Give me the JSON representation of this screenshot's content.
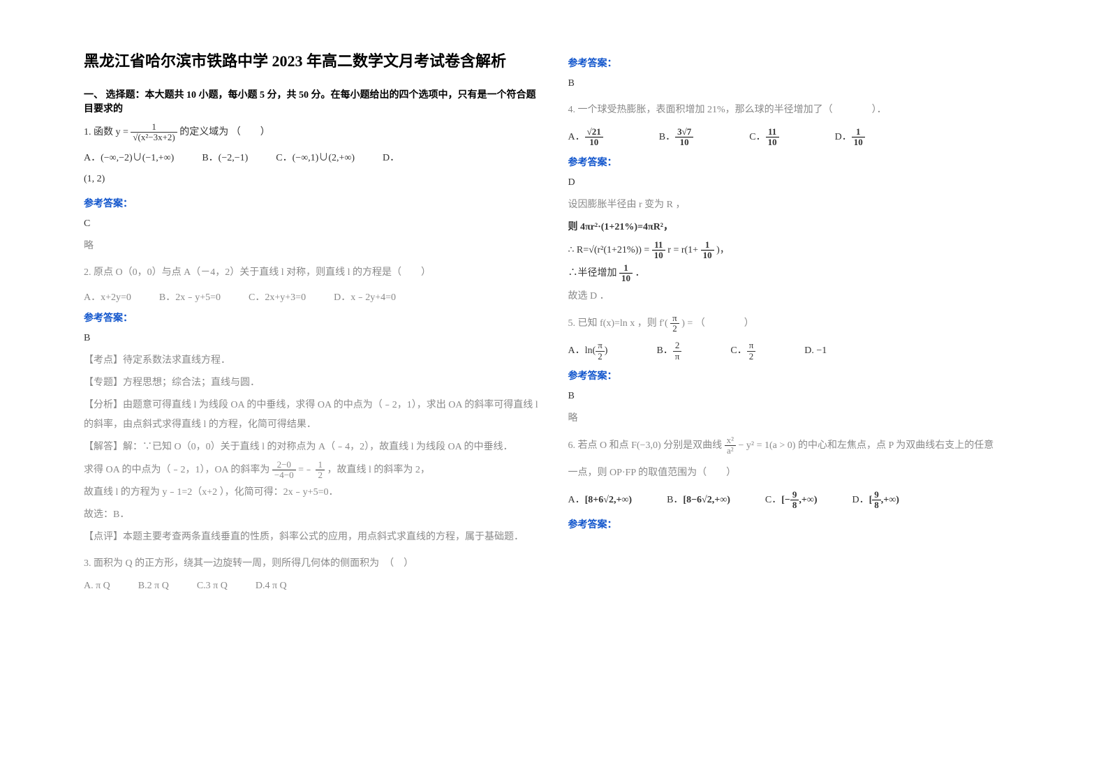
{
  "title": "黑龙江省哈尔滨市铁路中学 2023 年高二数学文月考试卷含解析",
  "section1_header": "一、 选择题：本大题共 10 小题，每小题 5 分，共 50 分。在每小题给出的四个选项中，只有是一个符合题目要求的",
  "q1": {
    "stem_prefix": "1. 函数 ",
    "stem_suffix": " 的定义域为  （　　）",
    "formula_num": "1",
    "formula_den": "√(x²−3x+2)",
    "optA": "(−∞,−2)∪(−1,+∞)",
    "optB": "(−2,−1)",
    "optC": "(−∞,1)∪(2,+∞)",
    "optD": "(1, 2)",
    "answer_label": "参考答案：",
    "answer": "C",
    "note": "略"
  },
  "q2": {
    "stem": "2. 原点 O（0，0）与点 A（－4，2）关于直线 l 对称，则直线 l 的方程是（　　）",
    "optA": "A．x+2y=0",
    "optB": "B．2x﹣y+5=0",
    "optC": "C．2x+y+3=0",
    "optD": "D．x﹣2y+4=0",
    "answer_label": "参考答案：",
    "answer": "B",
    "kaodian_label": "【考点】",
    "kaodian": "待定系数法求直线方程．",
    "zhuanti_label": "【专题】",
    "zhuanti": "方程思想；综合法；直线与圆．",
    "fenxi_label": "【分析】",
    "fenxi": "由题意可得直线 l 为线段 OA 的中垂线，求得 OA 的中点为（﹣2，1），求出 OA 的斜率可得直线 l 的斜率，由点斜式求得直线 l 的方程，化简可得结果．",
    "jieda_label": "【解答】",
    "jieda1": "解：∵已知 O（0，0）关于直线 l 的对称点为 A（﹣4，2），故直线 l 为线段 OA 的中垂线．",
    "jieda2_p1": "求得 OA 的中点为（﹣2，1），OA 的斜率为 ",
    "jieda2_frac_num": "2−0",
    "jieda2_frac_den": "−4−0",
    "jieda2_p2": "=﹣",
    "jieda2_frac2_num": "1",
    "jieda2_frac2_den": "2",
    "jieda2_p3": "，故直线 l 的斜率为 2，",
    "jieda3": "故直线 l 的方程为 y﹣1=2（x+2 ），化简可得：2x﹣y+5=0．",
    "jieda4": "故选：B．",
    "dianping_label": "【点评】",
    "dianping": "本题主要考查两条直线垂直的性质，斜率公式的应用，用点斜式求直线的方程，属于基础题．"
  },
  "q3": {
    "stem": "3. 面积为 Q 的正方形，绕其一边旋转一周，则所得几何体的侧面积为　（　）",
    "optA": "A. π Q",
    "optB": "B.2 π Q",
    "optC": "C.3 π Q",
    "optD": "D.4 π Q",
    "answer_label": "参考答案：",
    "answer": "B"
  },
  "q4": {
    "stem": "4. 一个球受热膨胀，表面积增加 21%，那么球的半径增加了（　　　　）．",
    "optA_num": "√21",
    "optA_den": "10",
    "optB_num": "3√7",
    "optB_den": "10",
    "optC_num": "11",
    "optC_den": "10",
    "optD_num": "1",
    "optD_den": "10",
    "answer_label": "参考答案：",
    "answer": "D",
    "line1": "设因膨胀半径由 r 变为 R ，",
    "line2": "则 4πr²·(1+21%)=4πR²，",
    "line3_p1": "∴ R=√(r²(1+21%)) = ",
    "line3_frac_num": "11",
    "line3_frac_den": "10",
    "line3_p2": " r = r(1+",
    "line3_frac2_num": "1",
    "line3_frac2_den": "10",
    "line3_p3": ")，",
    "line4_p1": "∴半径增加 ",
    "line4_frac_num": "1",
    "line4_frac_den": "10",
    "line4_p2": " ．",
    "line5": "故选 D ．"
  },
  "q5": {
    "stem_p1": "5. 已知 f(x)=ln x ，则 f′(",
    "stem_frac_num": "π",
    "stem_frac_den": "2",
    "stem_p2": ") = （　　　　）",
    "optA_p1": "ln(",
    "optA_num": "π",
    "optA_den": "2",
    "optA_p2": ")",
    "optB_num": "2",
    "optB_den": "π",
    "optC_num": "π",
    "optC_den": "2",
    "optD": "D. −1",
    "answer_label": "参考答案：",
    "answer": "B",
    "note": "略"
  },
  "q6": {
    "stem_p1": "6. 若点 O 和点 F(−3,0) 分别是双曲线 ",
    "stem_frac_num": "x²",
    "stem_frac_den": "a²",
    "stem_p2": " − y² = 1(a > 0) 的中心和左焦点，点 P 为双曲线右支上的任意",
    "stem_p3": "一点，则 OP·FP 的取值范围为（　　）",
    "optA": "[8+6√2,+∞)",
    "optB": "[8−6√2,+∞)",
    "optC_p1": "[−",
    "optC_num": "9",
    "optC_den": "8",
    "optC_p2": ",+∞)",
    "optD_p1": "[",
    "optD_num": "9",
    "optD_den": "8",
    "optD_p2": ",+∞)",
    "answer_label": "参考答案："
  }
}
